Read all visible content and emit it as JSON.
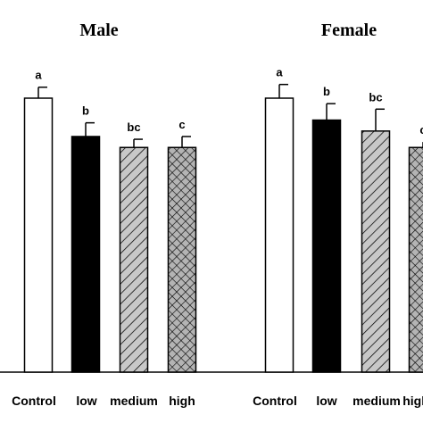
{
  "chart_data": {
    "type": "bar",
    "categories": [
      "Control",
      "low",
      "medium",
      "high"
    ],
    "ylim": [
      0,
      1.2
    ],
    "panels": [
      {
        "title": "Male",
        "values": [
          1.0,
          0.86,
          0.82,
          0.82
        ],
        "errors": [
          0.04,
          0.05,
          0.03,
          0.04
        ],
        "letters": [
          "a",
          "b",
          "bc",
          "c"
        ]
      },
      {
        "title": "Female",
        "values": [
          1.0,
          0.92,
          0.88,
          0.82
        ],
        "errors": [
          0.05,
          0.06,
          0.08,
          0.02
        ],
        "letters": [
          "a",
          "b",
          "bc",
          "c"
        ]
      }
    ],
    "fills": {
      "Control": "#ffffff",
      "low": "#000000",
      "medium": "#c8c8c8",
      "high": "#b4b4b4"
    }
  }
}
